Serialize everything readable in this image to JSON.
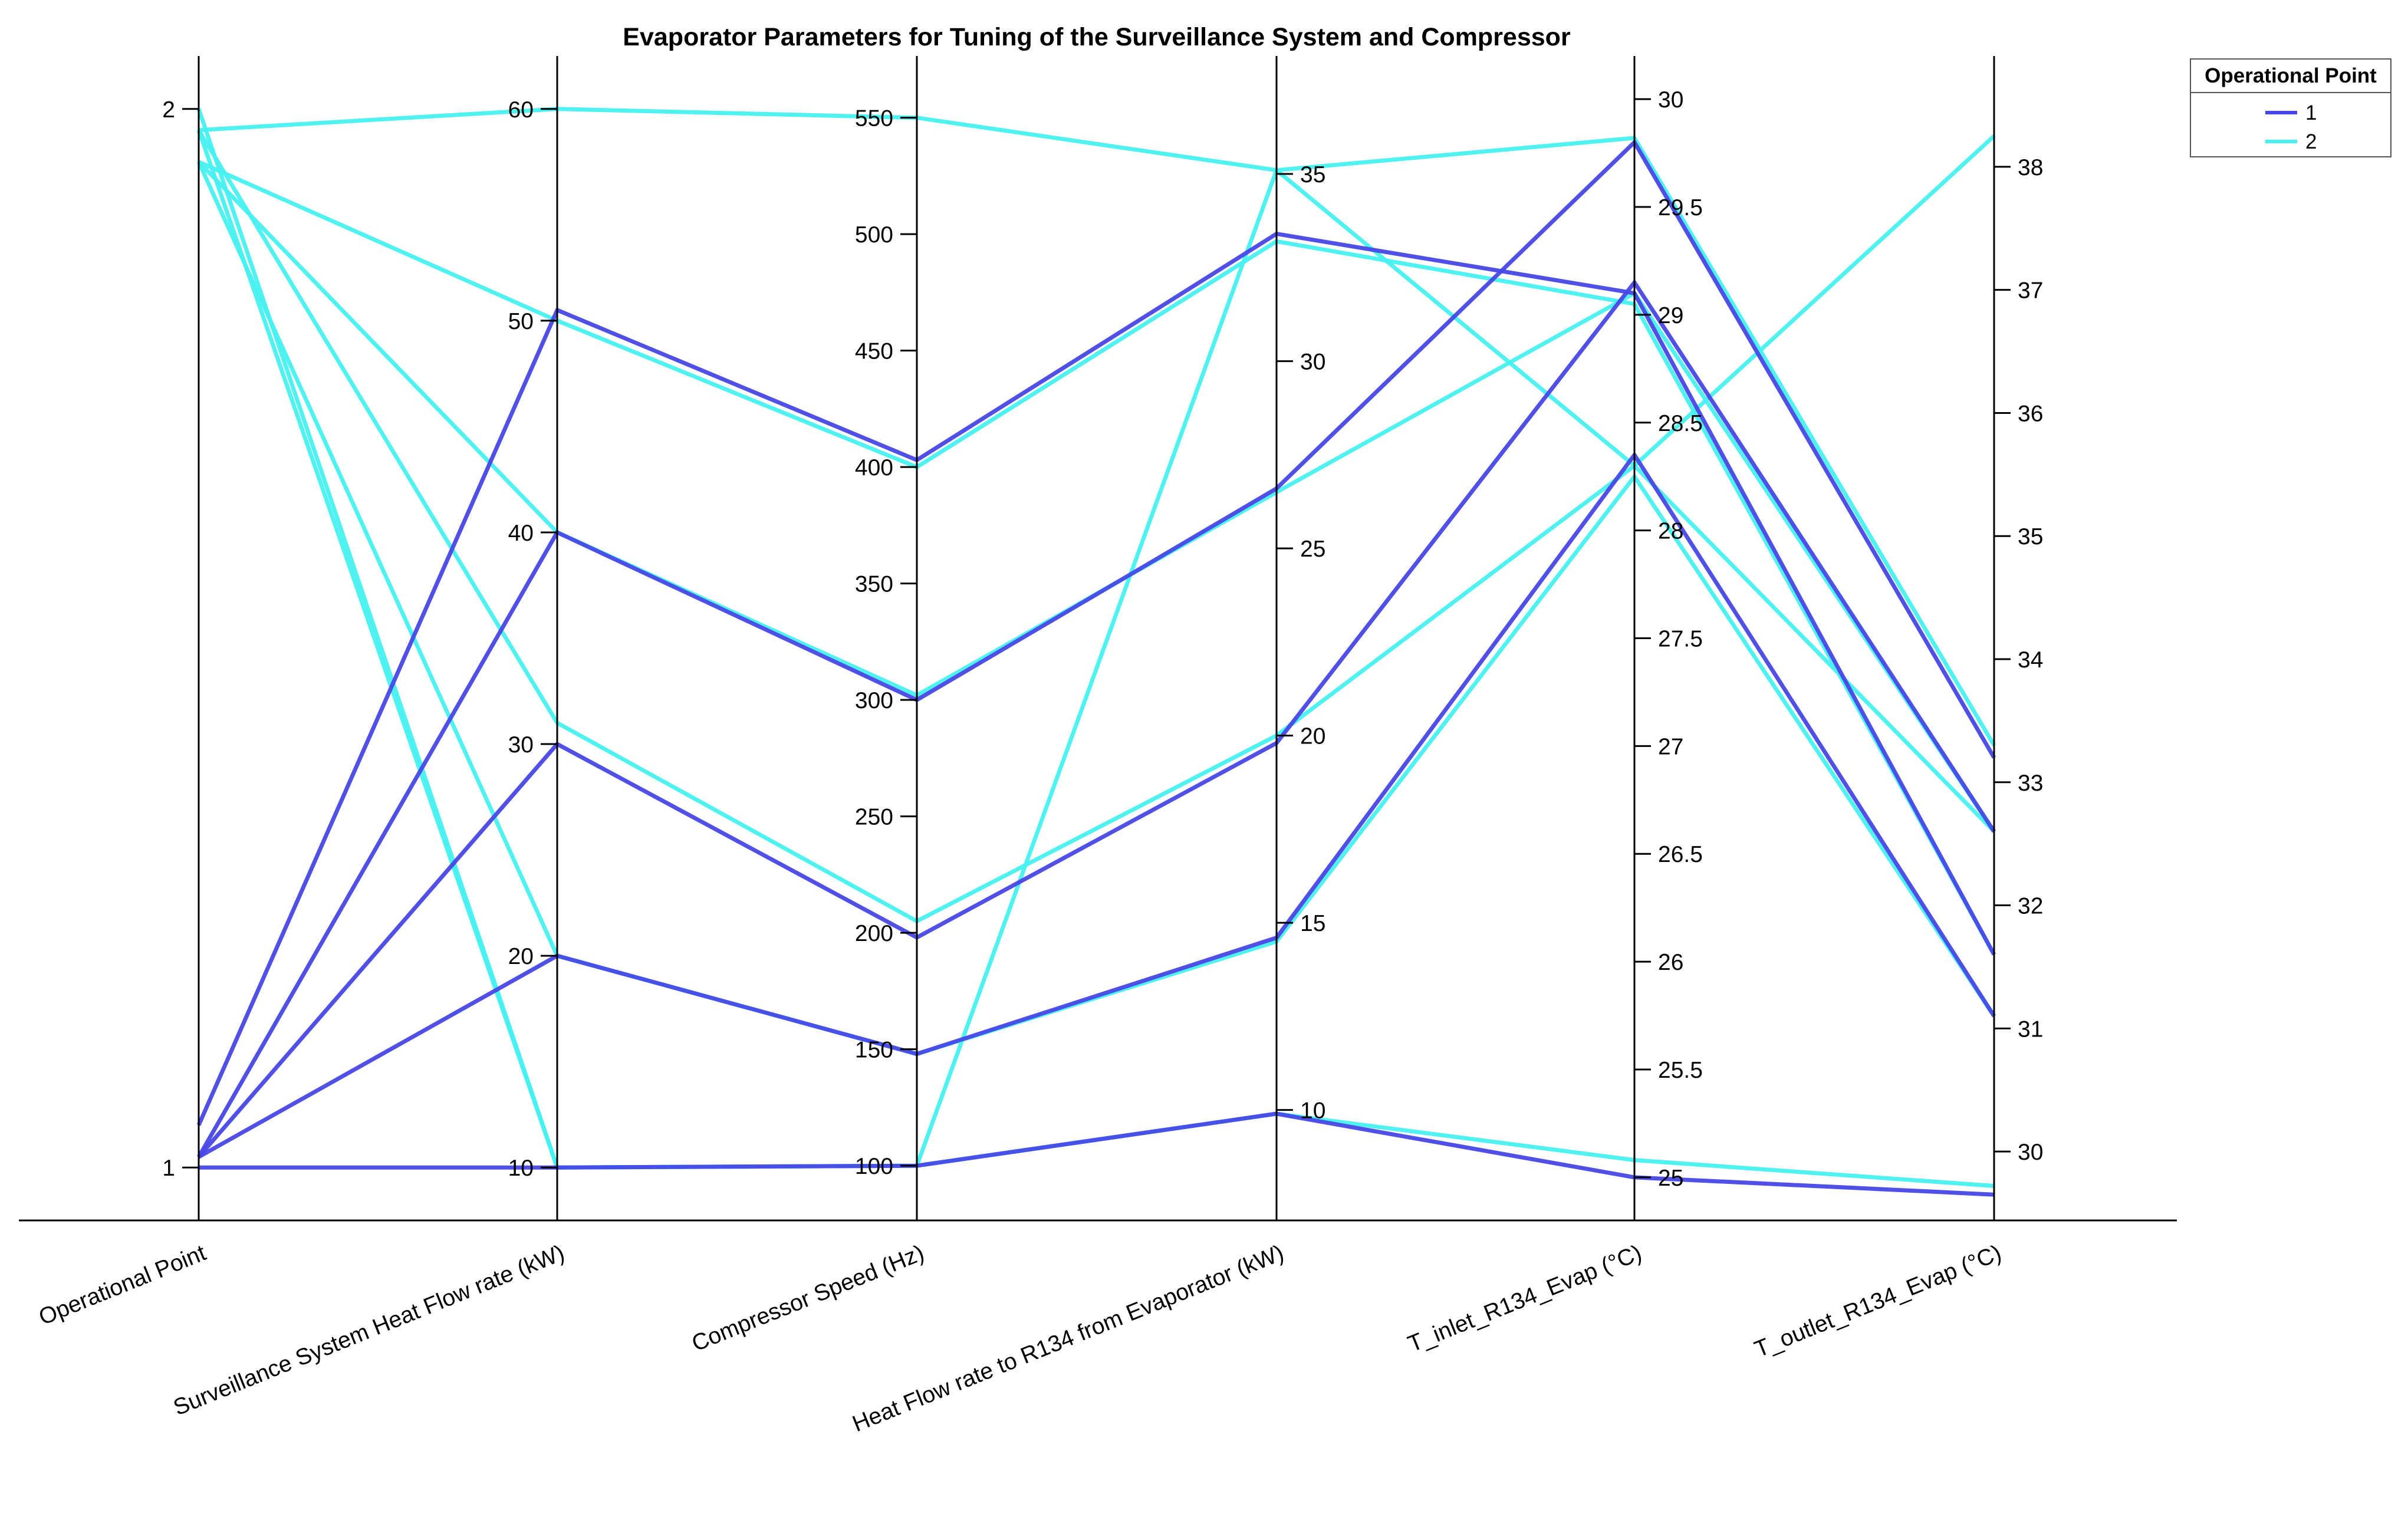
{
  "chart_data": {
    "type": "parallel_coordinates",
    "title": "Evaporator Parameters for Tuning of the Surveillance System and Compressor",
    "axes": [
      {
        "label": "Operational Point",
        "range": [
          0.95,
          2.05
        ],
        "ticks": [
          1,
          2
        ]
      },
      {
        "label": "Surveillance System Heat Flow rate (kW)",
        "range": [
          7.5,
          62.5
        ],
        "ticks": [
          10,
          20,
          30,
          40,
          50,
          60
        ]
      },
      {
        "label": "Compressor Speed (Hz)",
        "range": [
          76.5,
          576.5
        ],
        "ticks": [
          100,
          150,
          200,
          250,
          300,
          350,
          400,
          450,
          500,
          550
        ]
      },
      {
        "label": "Heat Flow rate to R134 from Evaporator (kW)",
        "range": [
          7.05,
          38.15
        ],
        "ticks": [
          10,
          15,
          20,
          25,
          30,
          35
        ]
      },
      {
        "label": "T_inlet_R134_Evap (°C)",
        "range": [
          24.8,
          30.2
        ],
        "ticks": [
          25,
          25.5,
          26,
          26.5,
          27,
          27.5,
          28,
          28.5,
          29,
          29.5,
          30
        ]
      },
      {
        "label": "T_outlet_R134_Evap (°C)",
        "range": [
          29.44,
          38.9
        ],
        "ticks": [
          30,
          31,
          32,
          33,
          34,
          35,
          36,
          37,
          38
        ]
      }
    ],
    "legend": {
      "title": "Operational Point",
      "position": "top-right",
      "entries": [
        {
          "label": "1",
          "color": "#4747e6"
        },
        {
          "label": "2",
          "color": "#47f0f0"
        }
      ]
    },
    "series": [
      {
        "group": "2",
        "values": [
          1.98,
          60,
          550,
          35.1,
          29.82,
          33.3
        ]
      },
      {
        "group": "2",
        "values": [
          1.95,
          50,
          400,
          33.2,
          29.05,
          31.6
        ]
      },
      {
        "group": "2",
        "values": [
          1.95,
          40,
          302,
          26.5,
          29.1,
          32.6
        ]
      },
      {
        "group": "2",
        "values": [
          1.98,
          31,
          205,
          20,
          28.3,
          32.6
        ]
      },
      {
        "group": "2",
        "values": [
          1.95,
          20,
          148,
          14.5,
          28.25,
          31.1
        ]
      },
      {
        "group": "2",
        "values": [
          2.0,
          10,
          100,
          9.9,
          25.08,
          29.72
        ]
      },
      {
        "group": "2",
        "values": [
          1.98,
          10,
          100,
          35.1,
          28.3,
          38.25
        ]
      },
      {
        "group": "1",
        "values": [
          1.04,
          50.5,
          403,
          33.4,
          29.1,
          31.6
        ]
      },
      {
        "group": "1",
        "values": [
          1.01,
          40,
          300,
          26.6,
          29.8,
          33.2
        ]
      },
      {
        "group": "1",
        "values": [
          1.01,
          30,
          198,
          19.8,
          29.15,
          32.6
        ]
      },
      {
        "group": "1",
        "values": [
          1.01,
          20,
          148,
          14.6,
          28.35,
          31.1
        ]
      },
      {
        "group": "1",
        "values": [
          1.0,
          10,
          100,
          9.9,
          25.0,
          29.65
        ]
      }
    ]
  }
}
